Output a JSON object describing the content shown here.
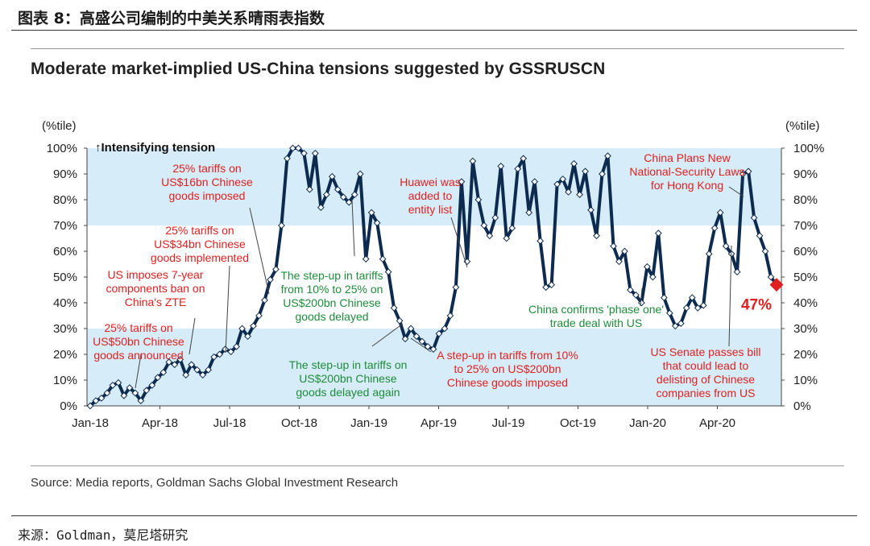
{
  "figure_title": "图表 8：高盛公司编制的中美关系晴雨表指数",
  "source": "Source: Media reports, Goldman Sachs Global Investment Research",
  "footer": "来源：Goldman，莫尼塔研究",
  "chart_data": {
    "type": "line",
    "title": "Moderate market-implied US-China tensions suggested by GSSRUSCN",
    "ylabel_left": "(%tile)",
    "ylabel_right": "(%tile)",
    "ylim": [
      0,
      100
    ],
    "yticks": [
      "0%",
      "10%",
      "20%",
      "30%",
      "40%",
      "50%",
      "60%",
      "70%",
      "80%",
      "90%",
      "100%"
    ],
    "xticks": [
      "Jan-18",
      "Apr-18",
      "Jul-18",
      "Oct-18",
      "Jan-19",
      "Apr-19",
      "Jul-19",
      "Oct-19",
      "Jan-20",
      "Apr-20"
    ],
    "x_start": "2018-01",
    "x_end": "2020-07",
    "shaded_bands": [
      [
        0,
        30
      ],
      [
        70,
        100
      ]
    ],
    "series": [
      {
        "values": [
          0,
          2,
          3,
          5,
          8,
          9,
          4,
          7,
          5,
          2,
          6,
          8,
          11,
          13,
          17,
          16,
          18,
          12,
          16,
          14,
          12,
          14,
          19,
          20,
          22,
          21,
          23,
          30,
          27,
          31,
          35,
          41,
          49,
          53,
          70,
          96,
          100,
          100,
          98,
          84,
          98,
          77,
          82,
          89,
          84,
          81,
          79,
          82,
          90,
          57,
          75,
          71,
          57,
          52,
          38,
          33,
          26,
          30,
          27,
          25,
          23,
          22,
          28,
          30,
          35,
          46,
          87,
          56,
          95,
          80,
          70,
          66,
          73,
          93,
          65,
          69,
          92,
          96,
          75,
          87,
          64,
          46,
          47,
          86,
          88,
          83,
          94,
          82,
          91,
          76,
          66,
          90,
          97,
          62,
          56,
          60,
          45,
          43,
          40,
          54,
          50,
          67,
          42,
          36,
          31,
          32,
          38,
          42,
          38,
          39,
          59,
          69,
          75,
          62,
          59,
          52,
          90,
          91,
          73,
          66,
          60,
          50,
          47
        ],
        "last_value": 47,
        "last_label": "47%"
      }
    ],
    "annotations": [
      {
        "text": "↑Intensifying tension",
        "color": "dark"
      },
      {
        "text": [
          "25% tariffs on",
          "US$16bn Chinese",
          "goods imposed"
        ],
        "color": "red"
      },
      {
        "text": [
          "25% tariffs on",
          "US$34bn Chinese",
          "goods implemented"
        ],
        "color": "red"
      },
      {
        "text": [
          "US imposes 7-year",
          "components ban on",
          "China's ZTE"
        ],
        "color": "red"
      },
      {
        "text": [
          "25% tariffs on",
          "US$50bn Chinese",
          "goods announced"
        ],
        "color": "red"
      },
      {
        "text": [
          "The step-up in tariffs",
          "from 10% to 25% on",
          "US$200bn Chinese",
          "goods delayed"
        ],
        "color": "green"
      },
      {
        "text": [
          "The step-up in tariffs on",
          "US$200bn Chinese",
          "goods delayed again"
        ],
        "color": "green"
      },
      {
        "text": [
          "Huawei was",
          "added to",
          "entity list"
        ],
        "color": "red"
      },
      {
        "text": [
          "A step-up in tariffs from 10%",
          "to 25% on US$200bn",
          "Chinese goods imposed"
        ],
        "color": "red"
      },
      {
        "text": [
          "China confirms 'phase one'",
          "trade deal with US"
        ],
        "color": "green"
      },
      {
        "text": [
          "China Plans New",
          "National-Security Laws",
          "for Hong Kong"
        ],
        "color": "red"
      },
      {
        "text": [
          "US Senate passes bill",
          "that could lead to",
          "delisting of Chinese",
          "companies from US"
        ],
        "color": "red"
      }
    ],
    "colors": {
      "line": "#0d2b4e",
      "band": "#d6ecf8",
      "red": "#e02020",
      "green": "#1e8c3a",
      "marker_last": "#e02020"
    }
  }
}
